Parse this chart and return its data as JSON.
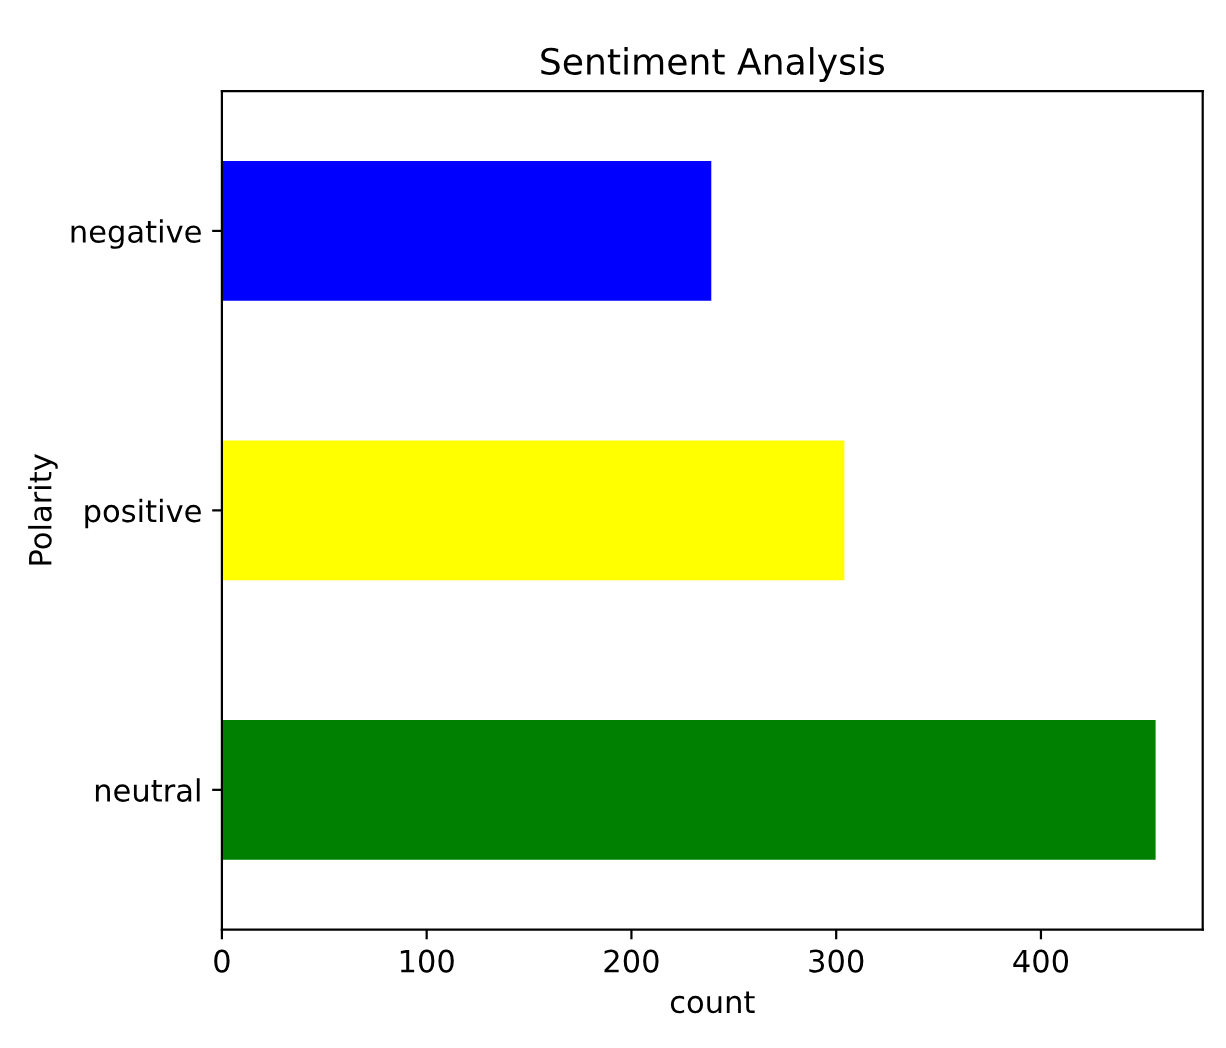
{
  "chart_data": {
    "type": "bar",
    "orientation": "horizontal",
    "title": "Sentiment Analysis",
    "xlabel": "count",
    "ylabel": "Polarity",
    "categories": [
      "negative",
      "positive",
      "neutral"
    ],
    "values": [
      239,
      304,
      456
    ],
    "colors": [
      "#0000ff",
      "#ffff00",
      "#008000"
    ],
    "xlim": [
      0,
      479
    ],
    "xticks": [
      0,
      100,
      200,
      300,
      400
    ],
    "grid": false,
    "legend": false
  }
}
